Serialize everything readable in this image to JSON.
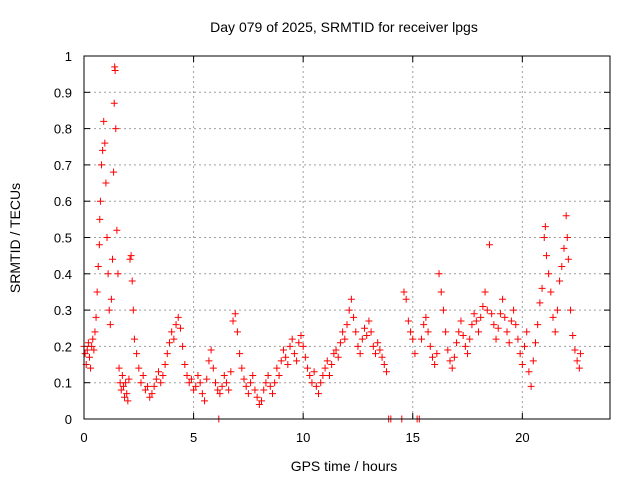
{
  "chart_data": {
    "type": "scatter",
    "title": "Day 079 of 2025, SRMTID for receiver lpgs",
    "xlabel": "GPS time / hours",
    "ylabel": "SRMTID / TECUs",
    "xlim": [
      0,
      24
    ],
    "ylim": [
      0,
      1
    ],
    "xticks": [
      0,
      5,
      10,
      15,
      20
    ],
    "yticks": [
      0,
      0.1,
      0.2,
      0.3,
      0.4,
      0.5,
      0.6,
      0.7,
      0.8,
      0.9,
      1
    ],
    "xtick_labels": [
      "0",
      "5",
      "10",
      "15",
      "20"
    ],
    "ytick_labels": [
      "0",
      "0.1",
      "0.2",
      "0.3",
      "0.4",
      "0.5",
      "0.6",
      "0.7",
      "0.8",
      "0.9",
      "1"
    ],
    "grid": true,
    "marker": "plus",
    "color": "#ff0000",
    "series": [
      {
        "name": "SRMTID",
        "points": [
          [
            0.0,
            0.2
          ],
          [
            0.05,
            0.18
          ],
          [
            0.1,
            0.15
          ],
          [
            0.15,
            0.19
          ],
          [
            0.2,
            0.21
          ],
          [
            0.25,
            0.17
          ],
          [
            0.3,
            0.14
          ],
          [
            0.35,
            0.2
          ],
          [
            0.4,
            0.22
          ],
          [
            0.45,
            0.19
          ],
          [
            0.5,
            0.24
          ],
          [
            0.55,
            0.28
          ],
          [
            0.6,
            0.35
          ],
          [
            0.65,
            0.42
          ],
          [
            0.7,
            0.48
          ],
          [
            0.72,
            0.55
          ],
          [
            0.75,
            0.6
          ],
          [
            0.8,
            0.7
          ],
          [
            0.85,
            0.74
          ],
          [
            0.9,
            0.82
          ],
          [
            0.95,
            0.76
          ],
          [
            1.0,
            0.65
          ],
          [
            1.05,
            0.5
          ],
          [
            1.1,
            0.4
          ],
          [
            1.15,
            0.3
          ],
          [
            1.2,
            0.26
          ],
          [
            1.25,
            0.33
          ],
          [
            1.3,
            0.44
          ],
          [
            1.35,
            0.68
          ],
          [
            1.38,
            0.87
          ],
          [
            1.4,
            0.97
          ],
          [
            1.42,
            0.96
          ],
          [
            1.45,
            0.8
          ],
          [
            1.5,
            0.52
          ],
          [
            1.55,
            0.4
          ],
          [
            1.6,
            0.14
          ],
          [
            1.65,
            0.1
          ],
          [
            1.7,
            0.08
          ],
          [
            1.75,
            0.12
          ],
          [
            1.8,
            0.09
          ],
          [
            1.85,
            0.06
          ],
          [
            1.9,
            0.1
          ],
          [
            1.95,
            0.07
          ],
          [
            2.0,
            0.05
          ],
          [
            2.05,
            0.11
          ],
          [
            2.1,
            0.44
          ],
          [
            2.15,
            0.45
          ],
          [
            2.2,
            0.38
          ],
          [
            2.25,
            0.3
          ],
          [
            2.3,
            0.22
          ],
          [
            2.4,
            0.18
          ],
          [
            2.5,
            0.14
          ],
          [
            2.6,
            0.1
          ],
          [
            2.7,
            0.12
          ],
          [
            2.8,
            0.08
          ],
          [
            2.9,
            0.09
          ],
          [
            3.0,
            0.06
          ],
          [
            3.1,
            0.07
          ],
          [
            3.2,
            0.09
          ],
          [
            3.3,
            0.11
          ],
          [
            3.4,
            0.13
          ],
          [
            3.5,
            0.1
          ],
          [
            3.6,
            0.12
          ],
          [
            3.7,
            0.15
          ],
          [
            3.8,
            0.18
          ],
          [
            3.9,
            0.21
          ],
          [
            4.0,
            0.24
          ],
          [
            4.1,
            0.22
          ],
          [
            4.2,
            0.26
          ],
          [
            4.3,
            0.28
          ],
          [
            4.4,
            0.25
          ],
          [
            4.5,
            0.2
          ],
          [
            4.6,
            0.15
          ],
          [
            4.7,
            0.12
          ],
          [
            4.8,
            0.1
          ],
          [
            4.9,
            0.11
          ],
          [
            5.0,
            0.08
          ],
          [
            5.1,
            0.09
          ],
          [
            5.2,
            0.12
          ],
          [
            5.3,
            0.1
          ],
          [
            5.4,
            0.07
          ],
          [
            5.5,
            0.05
          ],
          [
            5.6,
            0.11
          ],
          [
            5.7,
            0.16
          ],
          [
            5.8,
            0.19
          ],
          [
            5.9,
            0.14
          ],
          [
            6.0,
            0.1
          ],
          [
            6.1,
            0.08
          ],
          [
            6.15,
            0.0
          ],
          [
            6.2,
            0.07
          ],
          [
            6.3,
            0.09
          ],
          [
            6.4,
            0.12
          ],
          [
            6.5,
            0.1
          ],
          [
            6.6,
            0.08
          ],
          [
            6.7,
            0.13
          ],
          [
            6.8,
            0.27
          ],
          [
            6.9,
            0.29
          ],
          [
            7.0,
            0.24
          ],
          [
            7.1,
            0.18
          ],
          [
            7.2,
            0.14
          ],
          [
            7.3,
            0.11
          ],
          [
            7.4,
            0.09
          ],
          [
            7.5,
            0.07
          ],
          [
            7.6,
            0.1
          ],
          [
            7.7,
            0.12
          ],
          [
            7.8,
            0.08
          ],
          [
            7.9,
            0.06
          ],
          [
            8.0,
            0.04
          ],
          [
            8.1,
            0.05
          ],
          [
            8.2,
            0.08
          ],
          [
            8.3,
            0.1
          ],
          [
            8.4,
            0.12
          ],
          [
            8.5,
            0.09
          ],
          [
            8.6,
            0.07
          ],
          [
            8.7,
            0.1
          ],
          [
            8.8,
            0.14
          ],
          [
            8.9,
            0.12
          ],
          [
            9.0,
            0.16
          ],
          [
            9.1,
            0.19
          ],
          [
            9.2,
            0.17
          ],
          [
            9.3,
            0.15
          ],
          [
            9.4,
            0.2
          ],
          [
            9.5,
            0.22
          ],
          [
            9.6,
            0.18
          ],
          [
            9.7,
            0.16
          ],
          [
            9.8,
            0.21
          ],
          [
            9.9,
            0.23
          ],
          [
            10.0,
            0.2
          ],
          [
            10.1,
            0.17
          ],
          [
            10.2,
            0.14
          ],
          [
            10.3,
            0.12
          ],
          [
            10.4,
            0.1
          ],
          [
            10.5,
            0.13
          ],
          [
            10.6,
            0.09
          ],
          [
            10.7,
            0.07
          ],
          [
            10.8,
            0.1
          ],
          [
            10.9,
            0.12
          ],
          [
            11.0,
            0.14
          ],
          [
            11.1,
            0.16
          ],
          [
            11.2,
            0.12
          ],
          [
            11.3,
            0.15
          ],
          [
            11.4,
            0.18
          ],
          [
            11.5,
            0.19
          ],
          [
            11.6,
            0.17
          ],
          [
            11.7,
            0.21
          ],
          [
            11.8,
            0.24
          ],
          [
            11.9,
            0.22
          ],
          [
            12.0,
            0.26
          ],
          [
            12.1,
            0.3
          ],
          [
            12.2,
            0.33
          ],
          [
            12.3,
            0.28
          ],
          [
            12.4,
            0.24
          ],
          [
            12.5,
            0.2
          ],
          [
            12.6,
            0.18
          ],
          [
            12.7,
            0.22
          ],
          [
            12.8,
            0.25
          ],
          [
            12.9,
            0.23
          ],
          [
            13.0,
            0.27
          ],
          [
            13.1,
            0.24
          ],
          [
            13.2,
            0.2
          ],
          [
            13.3,
            0.18
          ],
          [
            13.4,
            0.21
          ],
          [
            13.5,
            0.19
          ],
          [
            13.6,
            0.17
          ],
          [
            13.7,
            0.15
          ],
          [
            13.8,
            0.13
          ],
          [
            13.9,
            0.0
          ],
          [
            14.0,
            0.0
          ],
          [
            14.5,
            0.0
          ],
          [
            14.6,
            0.35
          ],
          [
            14.7,
            0.33
          ],
          [
            14.8,
            0.27
          ],
          [
            14.9,
            0.24
          ],
          [
            15.0,
            0.22
          ],
          [
            15.1,
            0.18
          ],
          [
            15.2,
            0.0
          ],
          [
            15.3,
            0.0
          ],
          [
            15.4,
            0.22
          ],
          [
            15.5,
            0.26
          ],
          [
            15.6,
            0.28
          ],
          [
            15.7,
            0.24
          ],
          [
            15.8,
            0.2
          ],
          [
            15.9,
            0.17
          ],
          [
            16.0,
            0.15
          ],
          [
            16.1,
            0.18
          ],
          [
            16.2,
            0.4
          ],
          [
            16.3,
            0.35
          ],
          [
            16.4,
            0.3
          ],
          [
            16.5,
            0.24
          ],
          [
            16.6,
            0.19
          ],
          [
            16.7,
            0.16
          ],
          [
            16.8,
            0.14
          ],
          [
            16.9,
            0.17
          ],
          [
            17.0,
            0.21
          ],
          [
            17.1,
            0.24
          ],
          [
            17.2,
            0.27
          ],
          [
            17.3,
            0.23
          ],
          [
            17.4,
            0.2
          ],
          [
            17.5,
            0.18
          ],
          [
            17.6,
            0.22
          ],
          [
            17.7,
            0.26
          ],
          [
            17.8,
            0.29
          ],
          [
            17.9,
            0.27
          ],
          [
            18.0,
            0.24
          ],
          [
            18.1,
            0.28
          ],
          [
            18.2,
            0.31
          ],
          [
            18.3,
            0.35
          ],
          [
            18.4,
            0.3
          ],
          [
            18.5,
            0.48
          ],
          [
            18.6,
            0.29
          ],
          [
            18.7,
            0.26
          ],
          [
            18.8,
            0.22
          ],
          [
            18.9,
            0.25
          ],
          [
            19.0,
            0.29
          ],
          [
            19.1,
            0.33
          ],
          [
            19.2,
            0.28
          ],
          [
            19.3,
            0.24
          ],
          [
            19.4,
            0.21
          ],
          [
            19.5,
            0.27
          ],
          [
            19.6,
            0.3
          ],
          [
            19.7,
            0.26
          ],
          [
            19.8,
            0.22
          ],
          [
            19.9,
            0.18
          ],
          [
            20.0,
            0.15
          ],
          [
            20.1,
            0.2
          ],
          [
            20.2,
            0.24
          ],
          [
            20.3,
            0.13
          ],
          [
            20.4,
            0.09
          ],
          [
            20.5,
            0.16
          ],
          [
            20.6,
            0.21
          ],
          [
            20.7,
            0.26
          ],
          [
            20.8,
            0.32
          ],
          [
            20.9,
            0.36
          ],
          [
            21.0,
            0.5
          ],
          [
            21.05,
            0.53
          ],
          [
            21.1,
            0.45
          ],
          [
            21.2,
            0.4
          ],
          [
            21.3,
            0.35
          ],
          [
            21.4,
            0.28
          ],
          [
            21.5,
            0.24
          ],
          [
            21.6,
            0.3
          ],
          [
            21.7,
            0.38
          ],
          [
            21.8,
            0.42
          ],
          [
            21.9,
            0.47
          ],
          [
            22.0,
            0.56
          ],
          [
            22.05,
            0.5
          ],
          [
            22.1,
            0.44
          ],
          [
            22.2,
            0.3
          ],
          [
            22.3,
            0.23
          ],
          [
            22.4,
            0.19
          ],
          [
            22.5,
            0.16
          ],
          [
            22.6,
            0.14
          ],
          [
            22.65,
            0.18
          ]
        ]
      }
    ]
  }
}
